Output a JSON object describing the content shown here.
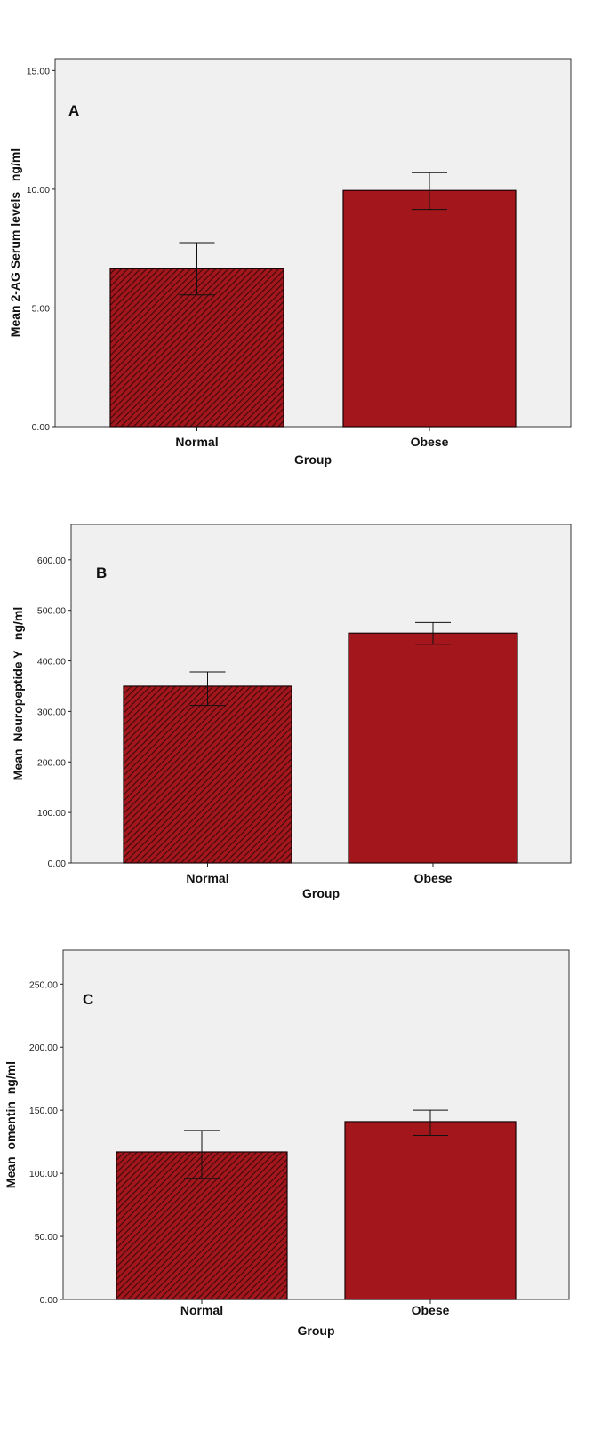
{
  "colors": {
    "plot_background": "#f1f0f0",
    "bar_fill": "#a3161c",
    "hatch_line": "#3a0a0c",
    "frame": "#333333"
  },
  "chart_data": [
    {
      "type": "bar",
      "panel_label": "A",
      "categories": [
        "Normal",
        "Obese"
      ],
      "values": [
        6.65,
        9.95
      ],
      "error_low": [
        5.55,
        9.15
      ],
      "error_high": [
        7.75,
        10.7
      ],
      "hatched": [
        true,
        false
      ],
      "xlabel": "Group",
      "ylabel": "Mean 2-AG Serum levels   ng/ml",
      "ylim": [
        0,
        15.5
      ],
      "yticks": [
        0,
        5,
        10,
        15
      ],
      "ytick_labels": [
        "0.00",
        "5.00",
        "10.00",
        "15.00"
      ],
      "grid": false
    },
    {
      "type": "bar",
      "panel_label": "B",
      "categories": [
        "Normal",
        "Obese"
      ],
      "values": [
        350,
        455
      ],
      "error_low": [
        312,
        433
      ],
      "error_high": [
        378,
        476
      ],
      "hatched": [
        true,
        false
      ],
      "xlabel": "Group",
      "ylabel": "Mean  Neuropeptide Y   ng/ml",
      "ylim": [
        0,
        670
      ],
      "yticks": [
        0,
        100,
        200,
        300,
        400,
        500,
        600
      ],
      "ytick_labels": [
        "0.00",
        "100.00",
        "200.00",
        "300.00",
        "400.00",
        "500.00",
        "600.00"
      ],
      "grid": false
    },
    {
      "type": "bar",
      "panel_label": "C",
      "categories": [
        "Normal",
        "Obese"
      ],
      "values": [
        117,
        141
      ],
      "error_low": [
        96,
        130
      ],
      "error_high": [
        134,
        150
      ],
      "hatched": [
        true,
        false
      ],
      "xlabel": "Group",
      "ylabel": "Mean  omentin  ng/ml",
      "ylim": [
        0,
        277
      ],
      "yticks": [
        0,
        50,
        100,
        150,
        200,
        250
      ],
      "ytick_labels": [
        "0.00",
        "50.00",
        "100.00",
        "150.00",
        "200.00",
        "250.00"
      ],
      "grid": false
    }
  ]
}
